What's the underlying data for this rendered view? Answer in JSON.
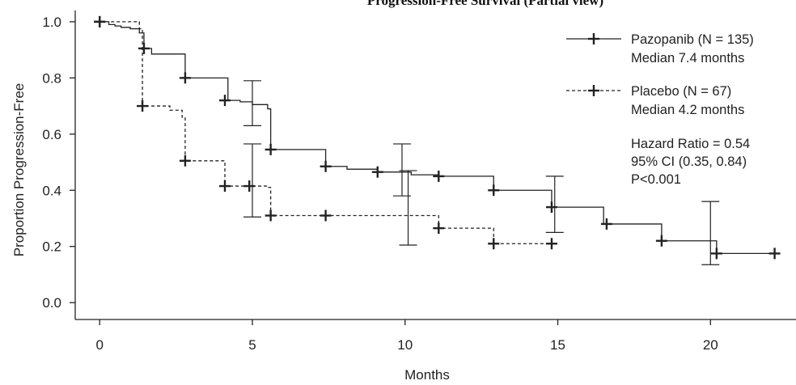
{
  "chart_data": {
    "type": "line",
    "title": "Progression-Free Survival (Partial view)",
    "xlabel": "Months",
    "ylabel": "Proportion Progression-Free",
    "xlim": [
      -0.8,
      22.8
    ],
    "ylim": [
      -0.06,
      1.04
    ],
    "xticks": [
      0,
      5,
      10,
      15,
      20
    ],
    "yticks": [
      0.0,
      0.2,
      0.4,
      0.6,
      0.8,
      1.0
    ],
    "ytick_labels": [
      "0.0",
      "0.2",
      "0.4",
      "0.6",
      "0.8",
      "1.0"
    ],
    "grid": false,
    "legend_position": "top-right",
    "series": [
      {
        "name": "Pazopanib (N = 135)",
        "label_line2": "Median 7.4 months",
        "dash": "solid",
        "x": [
          0,
          0.3,
          0.5,
          0.7,
          1.0,
          1.3,
          1.45,
          1.7,
          2.8,
          4.2,
          4.6,
          5.0,
          5.5,
          5.6,
          7.3,
          7.4,
          8.1,
          9.1,
          10.2,
          11.1,
          12.9,
          14.8,
          16.5,
          18.4,
          20.2,
          22.1
        ],
        "y": [
          1.0,
          0.99,
          0.985,
          0.98,
          0.975,
          0.96,
          0.905,
          0.885,
          0.8,
          0.72,
          0.715,
          0.705,
          0.69,
          0.545,
          0.545,
          0.485,
          0.475,
          0.465,
          0.455,
          0.45,
          0.4,
          0.34,
          0.28,
          0.22,
          0.175,
          0.175
        ],
        "censor_x": [
          0,
          1.45,
          2.8,
          4.1,
          5.6,
          7.4,
          9.1,
          11.1,
          12.9,
          14.8,
          16.6,
          18.4,
          20.2,
          22.1
        ],
        "censor_y": [
          1.0,
          0.905,
          0.8,
          0.72,
          0.545,
          0.485,
          0.465,
          0.45,
          0.4,
          0.34,
          0.28,
          0.22,
          0.175,
          0.175
        ]
      },
      {
        "name": "Placebo (N = 67)",
        "label_line2": "Median 4.2 months",
        "dash": "dashed",
        "x": [
          0,
          1.3,
          1.4,
          2.3,
          2.7,
          2.8,
          4.1,
          5.5,
          5.6,
          11.1,
          12.9,
          14.8
        ],
        "y": [
          1.0,
          0.975,
          0.7,
          0.685,
          0.66,
          0.505,
          0.415,
          0.41,
          0.31,
          0.265,
          0.21,
          0.21
        ],
        "censor_x": [
          0,
          1.4,
          2.8,
          4.1,
          4.9,
          5.6,
          7.4,
          11.1,
          12.9,
          14.8
        ],
        "censor_y": [
          1.0,
          0.7,
          0.505,
          0.415,
          0.415,
          0.31,
          0.31,
          0.265,
          0.21,
          0.21
        ]
      }
    ],
    "confidence_intervals": [
      {
        "x": 5.0,
        "low": 0.63,
        "high": 0.79
      },
      {
        "x": 5.0,
        "low": 0.305,
        "high": 0.565
      },
      {
        "x": 9.9,
        "low": 0.38,
        "high": 0.565
      },
      {
        "x": 10.1,
        "low": 0.205,
        "high": 0.47
      },
      {
        "x": 14.9,
        "low": 0.25,
        "high": 0.45
      },
      {
        "x": 20.0,
        "low": 0.135,
        "high": 0.36
      }
    ],
    "annotations": [
      "Hazard Ratio = 0.54",
      "95% CI (0.35, 0.84)",
      "P<0.001"
    ]
  }
}
